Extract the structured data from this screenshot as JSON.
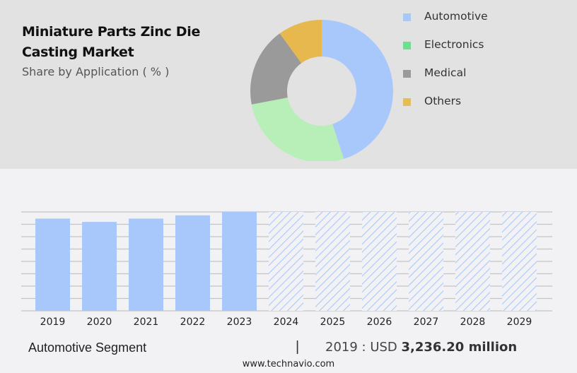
{
  "header": {
    "title": "Miniature Parts Zinc Die Casting Market",
    "subtitle": "Share by Application ( % )"
  },
  "chart_data": [
    {
      "type": "pie",
      "style": "donut",
      "title": "Share by Application ( % )",
      "categories": [
        "Automotive",
        "Electronics",
        "Medical",
        "Others"
      ],
      "values": [
        45,
        27,
        18,
        10
      ],
      "colors": [
        "#a8c8fc",
        "#b8eeb8",
        "#9a9a9a",
        "#e6b84e"
      ],
      "legend_colors": [
        "#a8c8fc",
        "#6ee08c",
        "#9a9a9a",
        "#e2bf52"
      ],
      "legend_position": "right"
    },
    {
      "type": "bar",
      "title": "Automotive Segment",
      "categories": [
        "2019",
        "2020",
        "2021",
        "2022",
        "2023",
        "2024",
        "2025",
        "2026",
        "2027",
        "2028",
        "2029"
      ],
      "values": [
        3236.2,
        3120,
        3236,
        3350,
        3470,
        null,
        null,
        null,
        null,
        null,
        null
      ],
      "forecast": [
        false,
        false,
        false,
        false,
        false,
        true,
        true,
        true,
        true,
        true,
        true
      ],
      "ylim": [
        0,
        3470
      ],
      "grid": true,
      "gridlines": 8,
      "bar_color": "#a8c8fc",
      "forecast_hatch_color": "#a8c8fc"
    }
  ],
  "footer": {
    "segment": "Automotive Segment",
    "separator": "|",
    "year_label": "2019 : USD ",
    "value": "3,236.20 million",
    "url": "www.technavio.com"
  }
}
